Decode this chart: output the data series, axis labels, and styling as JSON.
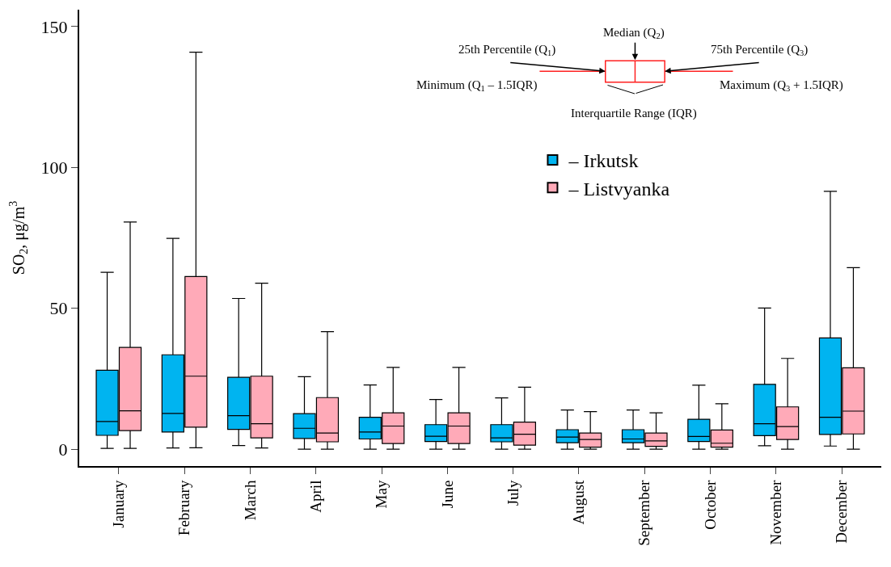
{
  "chart_data": {
    "type": "box",
    "ylabel": "SO$_{2}$, μg/m$^{3}$",
    "categories": [
      "January",
      "February",
      "March",
      "April",
      "May",
      "June",
      "July",
      "August",
      "September",
      "October",
      "November",
      "December"
    ],
    "ylim": [
      -6,
      156
    ],
    "yticks": [
      0,
      50,
      100,
      150
    ],
    "legend": "top right",
    "series": [
      {
        "name": "– Irkutsk",
        "color": "#00b4f0",
        "boxes": [
          {
            "low": 0.3,
            "q1": 4.9,
            "median": 9.8,
            "q3": 28.0,
            "high": 62.8
          },
          {
            "low": 0.4,
            "q1": 6.1,
            "median": 12.7,
            "q3": 33.5,
            "high": 74.8
          },
          {
            "low": 1.3,
            "q1": 7.0,
            "median": 11.9,
            "q3": 25.5,
            "high": 53.5
          },
          {
            "low": 0,
            "q1": 3.8,
            "median": 7.4,
            "q3": 12.6,
            "high": 25.7
          },
          {
            "low": 0,
            "q1": 3.6,
            "median": 6.1,
            "q3": 11.3,
            "high": 22.8
          },
          {
            "low": 0,
            "q1": 2.7,
            "median": 4.6,
            "q3": 8.7,
            "high": 17.6
          },
          {
            "low": 0,
            "q1": 2.6,
            "median": 4.0,
            "q3": 8.7,
            "high": 18.2
          },
          {
            "low": 0,
            "q1": 2.3,
            "median": 4.3,
            "q3": 6.9,
            "high": 13.9
          },
          {
            "low": 0,
            "q1": 2.3,
            "median": 3.6,
            "q3": 6.9,
            "high": 13.9
          },
          {
            "low": 0,
            "q1": 2.7,
            "median": 4.5,
            "q3": 10.6,
            "high": 22.7
          },
          {
            "low": 1.2,
            "q1": 4.8,
            "median": 9.0,
            "q3": 23.0,
            "high": 50.1
          },
          {
            "low": 1.1,
            "q1": 5.2,
            "median": 11.3,
            "q3": 39.5,
            "high": 91.5
          }
        ]
      },
      {
        "name": "– Listvyanka",
        "color": "#ffaab8",
        "boxes": [
          {
            "low": 0.3,
            "q1": 6.6,
            "median": 13.6,
            "q3": 36.1,
            "high": 80.6
          },
          {
            "low": 0.5,
            "q1": 7.8,
            "median": 25.9,
            "q3": 61.3,
            "high": 140.9
          },
          {
            "low": 0.4,
            "q1": 4.0,
            "median": 9.0,
            "q3": 25.9,
            "high": 58.9
          },
          {
            "low": 0,
            "q1": 2.6,
            "median": 5.7,
            "q3": 18.3,
            "high": 41.7
          },
          {
            "low": 0,
            "q1": 2.0,
            "median": 8.2,
            "q3": 12.9,
            "high": 29.0
          },
          {
            "low": 0,
            "q1": 2.0,
            "median": 8.2,
            "q3": 12.9,
            "high": 29.0
          },
          {
            "low": 0,
            "q1": 1.4,
            "median": 5.3,
            "q3": 9.6,
            "high": 22.0
          },
          {
            "low": 0,
            "q1": 0.7,
            "median": 3.4,
            "q3": 5.7,
            "high": 13.3
          },
          {
            "low": 0,
            "q1": 1.0,
            "median": 2.9,
            "q3": 5.7,
            "high": 12.9
          },
          {
            "low": 0,
            "q1": 0.7,
            "median": 2.1,
            "q3": 6.8,
            "high": 16.1
          },
          {
            "low": 0,
            "q1": 3.4,
            "median": 8.0,
            "q3": 15.0,
            "high": 32.2
          },
          {
            "low": 0,
            "q1": 5.4,
            "median": 13.5,
            "q3": 28.9,
            "high": 64.4
          }
        ]
      }
    ],
    "annotations": [
      "Median (Q$_{2}$)",
      "25th Percentile (Q$_{1}$)",
      "75th Percentile (Q$_{3}$)",
      "Minimum (Q$_{1}$ – 1.5IQR)",
      "Maximum (Q$_{3}$ + 1.5IQR)",
      "Interquartile Range (IQR)"
    ]
  }
}
